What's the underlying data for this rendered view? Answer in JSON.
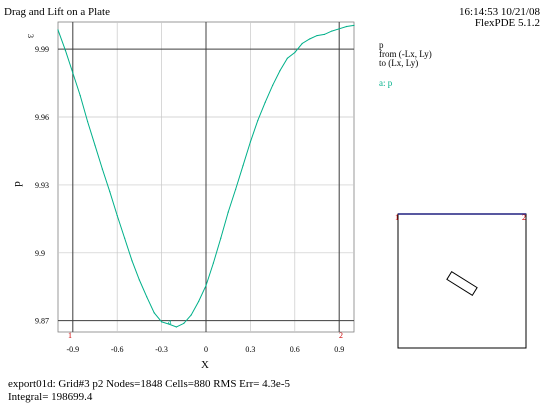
{
  "header": {
    "title": "Drag and Lift on a Plate",
    "timestamp": "16:14:53 10/21/08",
    "app_version": "FlexPDE 5.1.2"
  },
  "legend": {
    "variable": "p",
    "from_text": "from (-Lx, Ly)",
    "to_text": "to (Lx, Ly)",
    "series_entry": "a: p",
    "series_color": "#00b08a"
  },
  "plot": {
    "exponent_label": "3"
  },
  "footer": {
    "line1": "export01d:  Grid#3  p2  Nodes=1848 Cells=880 RMS Err= 4.3e-5",
    "line2": "Integral=   198699.4"
  },
  "markers": {
    "start": "1",
    "end": "2",
    "series_point": "a"
  },
  "colors": {
    "curve": "#00b08a",
    "grid_major": "#404040",
    "grid_minor": "#c8c8c8",
    "marker": "#cc0000",
    "domain_outline": "#000000",
    "domain_top": "#202080"
  },
  "chart_data": {
    "type": "line",
    "title": "Drag and Lift on a Plate",
    "xlabel": "X",
    "ylabel": "p",
    "xlim": [
      -1.0,
      1.0
    ],
    "ylim": [
      9.865,
      10.002
    ],
    "x_ticks": [
      -0.9,
      -0.6,
      -0.3,
      0,
      0.3,
      0.6,
      0.9
    ],
    "x_tick_labels": [
      "-0.9",
      "-0.6",
      "-0.3",
      "0",
      "0.3",
      "0.6",
      "0.9"
    ],
    "y_ticks": [
      9.87,
      9.9,
      9.93,
      9.96,
      9.99
    ],
    "y_tick_labels": [
      "9.87",
      "9.9",
      "9.93",
      "9.96",
      "9.99"
    ],
    "major_x_lines": [
      -0.9,
      0,
      0.9
    ],
    "major_y_lines": [
      9.87,
      9.99
    ],
    "grid": true,
    "series": [
      {
        "name": "p",
        "color": "#00b08a",
        "x": [
          -1.0,
          -0.95,
          -0.9,
          -0.85,
          -0.8,
          -0.75,
          -0.7,
          -0.65,
          -0.6,
          -0.55,
          -0.5,
          -0.45,
          -0.4,
          -0.35,
          -0.3,
          -0.25,
          -0.2,
          -0.15,
          -0.1,
          -0.05,
          0.0,
          0.05,
          0.1,
          0.15,
          0.2,
          0.25,
          0.3,
          0.35,
          0.4,
          0.45,
          0.5,
          0.55,
          0.6,
          0.65,
          0.7,
          0.75,
          0.8,
          0.85,
          0.9,
          0.95,
          1.0
        ],
        "y": [
          9.9985,
          9.9895,
          9.9795,
          9.9695,
          9.958,
          9.9475,
          9.937,
          9.927,
          9.9165,
          9.9065,
          9.8965,
          9.888,
          9.8805,
          9.8735,
          9.8695,
          9.8685,
          9.8672,
          9.8688,
          9.8725,
          9.8785,
          9.8855,
          9.8955,
          9.9065,
          9.918,
          9.928,
          9.9385,
          9.949,
          9.9585,
          9.9665,
          9.974,
          9.9805,
          9.986,
          9.9885,
          9.9925,
          9.9945,
          9.996,
          9.9965,
          9.998,
          9.999,
          10.0,
          10.0005
        ]
      }
    ]
  }
}
